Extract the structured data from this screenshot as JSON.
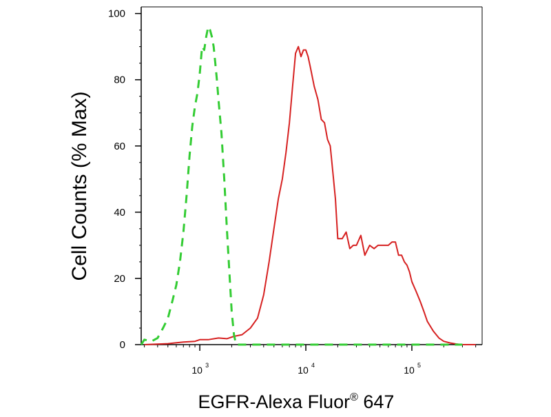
{
  "chart_data": {
    "type": "line",
    "title": "",
    "xlabel": "EGFR-Alexa Fluor",
    "xlabel_superscript": "®",
    "xlabel_suffix": " 647",
    "ylabel": "Cell Counts (% Max)",
    "x_scale": "log",
    "xlim": [
      280,
      460000
    ],
    "ylim": [
      0,
      102
    ],
    "grid": false,
    "legend": "none",
    "y_ticks": [
      0,
      20,
      40,
      60,
      80,
      100
    ],
    "x_tick_labels": [
      {
        "value": 1000,
        "base": "10",
        "exp": "3"
      },
      {
        "value": 10000,
        "base": "10",
        "exp": "4"
      },
      {
        "value": 100000,
        "base": "10",
        "exp": "5"
      }
    ],
    "series": [
      {
        "color": "#d62020",
        "style": "solid",
        "x": [
          300,
          500,
          700,
          900,
          1000,
          1200,
          1500,
          1800,
          2100,
          2500,
          3000,
          3500,
          4000,
          4500,
          5000,
          5500,
          6000,
          6500,
          7000,
          7500,
          8000,
          8500,
          9000,
          9500,
          10000,
          10500,
          11000,
          12000,
          13000,
          14000,
          15000,
          16000,
          17000,
          18000,
          19000,
          20000,
          22000,
          24000,
          26000,
          28000,
          30000,
          33000,
          36000,
          40000,
          44000,
          48000,
          52000,
          56000,
          60000,
          65000,
          70000,
          75000,
          80000,
          85000,
          90000,
          95000,
          100000,
          110000,
          120000,
          130000,
          140000,
          160000,
          180000,
          200000,
          230000,
          260000,
          300000,
          350000,
          400000
        ],
        "values": [
          0,
          0.3,
          0.8,
          1,
          1.5,
          1.5,
          2,
          1.8,
          2.5,
          3,
          5,
          8,
          15,
          25,
          35,
          44,
          50,
          58,
          67,
          78,
          88,
          90,
          87,
          89,
          89,
          87,
          84,
          78,
          74,
          68,
          67,
          62,
          60,
          52,
          44,
          32,
          32,
          34,
          29,
          30,
          30,
          33,
          27,
          30,
          29,
          30,
          30,
          30,
          30,
          31,
          31,
          27,
          27,
          25,
          24,
          22,
          19,
          16,
          13,
          10,
          7,
          4,
          2,
          1,
          0.5,
          0.2,
          0,
          0,
          0
        ]
      },
      {
        "color": "#33cc33",
        "style": "dashed",
        "x": [
          280,
          300,
          350,
          400,
          450,
          500,
          550,
          600,
          650,
          700,
          750,
          800,
          850,
          900,
          950,
          1000,
          1050,
          1100,
          1150,
          1200,
          1250,
          1300,
          1350,
          1400,
          1450,
          1500,
          1600,
          1700,
          1800,
          1900,
          2000,
          2100,
          2200,
          2400,
          3000,
          5000,
          10000,
          50000,
          200000,
          300000
        ],
        "values": [
          0,
          1.5,
          1,
          2,
          5,
          8,
          13,
          18,
          25,
          34,
          45,
          57,
          66,
          72,
          76,
          82,
          90,
          89,
          93,
          96,
          95,
          93,
          90,
          85,
          80,
          74,
          64,
          50,
          35,
          22,
          10,
          3,
          0,
          0,
          0,
          0,
          0,
          0,
          0,
          0
        ]
      }
    ]
  }
}
